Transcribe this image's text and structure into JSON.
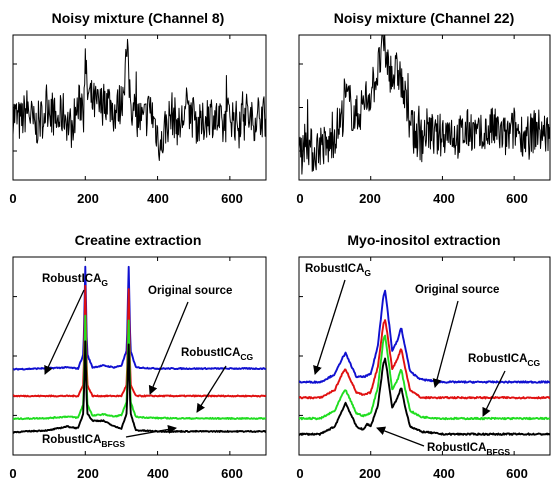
{
  "chart_data": [
    {
      "type": "line",
      "title": "Noisy mixture (Channel 8)",
      "xlim": [
        0,
        700
      ],
      "ylim": [
        -1.2,
        1.6
      ],
      "xticks": [
        "0",
        "200",
        "400",
        "600"
      ],
      "grid": false,
      "series": [
        {
          "color": "#000000",
          "x": [
            0,
            20,
            40,
            60,
            80,
            100,
            120,
            140,
            160,
            180,
            195,
            200,
            205,
            220,
            240,
            260,
            280,
            300,
            310,
            315,
            320,
            325,
            330,
            340,
            360,
            380,
            400,
            410,
            420,
            440,
            460,
            480,
            500,
            520,
            540,
            560,
            580,
            600,
            620,
            640,
            660,
            680,
            700
          ],
          "y": [
            0.1,
            -0.1,
            0.2,
            -0.2,
            0.0,
            0.3,
            -0.1,
            0.1,
            -0.2,
            0.2,
            0.4,
            1.1,
            0.5,
            0.3,
            0.2,
            0.4,
            0.1,
            0.3,
            0.9,
            1.3,
            0.8,
            0.4,
            0.2,
            0.1,
            -0.1,
            0.2,
            -0.3,
            -0.6,
            -0.2,
            0.1,
            -0.2,
            0.2,
            0.0,
            -0.2,
            0.1,
            0.0,
            -0.2,
            0.1,
            -0.1,
            0.2,
            -0.1,
            0.1,
            0.0
          ]
        }
      ]
    },
    {
      "type": "line",
      "title": "Noisy mixture (Channel 22)",
      "xlim": [
        0,
        700
      ],
      "ylim": [
        -1.2,
        1.6
      ],
      "xticks": [
        "0",
        "200",
        "400",
        "600"
      ],
      "grid": false,
      "series": [
        {
          "color": "#000000",
          "x": [
            0,
            20,
            40,
            60,
            80,
            100,
            120,
            130,
            140,
            150,
            160,
            180,
            200,
            220,
            235,
            240,
            245,
            260,
            280,
            290,
            300,
            320,
            340,
            360,
            380,
            400,
            420,
            440,
            460,
            480,
            500,
            520,
            540,
            560,
            580,
            600,
            620,
            640,
            660,
            680,
            700
          ],
          "y": [
            -0.6,
            -0.4,
            -0.7,
            -0.5,
            -0.6,
            -0.3,
            0.0,
            0.4,
            0.3,
            0.1,
            0.0,
            0.3,
            0.5,
            0.9,
            1.4,
            1.3,
            1.1,
            0.8,
            0.9,
            0.5,
            0.2,
            -0.3,
            -0.4,
            -0.2,
            -0.4,
            -0.3,
            -0.2,
            -0.4,
            -0.3,
            -0.2,
            -0.4,
            -0.3,
            -0.2,
            -0.3,
            -0.4,
            -0.2,
            -0.3,
            -0.4,
            -0.2,
            -0.3,
            -0.3
          ]
        }
      ]
    },
    {
      "type": "line",
      "title": "Creatine extraction",
      "xlim": [
        0,
        700
      ],
      "ylim": [
        -0.6,
        4.6
      ],
      "xticks": [
        "0",
        "200",
        "400",
        "600"
      ],
      "grid": false,
      "series": [
        {
          "name": "RobustICA_G",
          "color": "#1010d0",
          "offset": 1.65,
          "x": [
            0,
            100,
            150,
            180,
            195,
            200,
            205,
            220,
            250,
            280,
            300,
            315,
            320,
            325,
            340,
            400,
            500,
            600,
            700
          ],
          "y": [
            0.0,
            0.03,
            0.05,
            0.02,
            0.4,
            2.7,
            0.4,
            0.05,
            0.1,
            0.05,
            0.1,
            0.5,
            2.7,
            0.5,
            0.05,
            0.02,
            0.02,
            0.02,
            0.02
          ]
        },
        {
          "name": "Original source",
          "color": "#e01010",
          "offset": 0.95,
          "x": [
            0,
            100,
            150,
            180,
            195,
            200,
            205,
            220,
            250,
            280,
            300,
            315,
            320,
            325,
            340,
            400,
            500,
            600,
            700
          ],
          "y": [
            0.0,
            0.0,
            0.0,
            0.0,
            0.3,
            2.9,
            0.3,
            0.0,
            0.0,
            0.0,
            0.0,
            0.3,
            2.8,
            0.3,
            0.0,
            0.0,
            0.0,
            0.0,
            0.0
          ]
        },
        {
          "name": "RobustICA_CG",
          "color": "#20dd20",
          "offset": 0.35,
          "x": [
            0,
            100,
            150,
            180,
            195,
            200,
            205,
            220,
            250,
            280,
            300,
            315,
            320,
            325,
            340,
            400,
            500,
            600,
            700
          ],
          "y": [
            0.0,
            0.02,
            0.06,
            0.03,
            0.4,
            2.7,
            0.4,
            0.08,
            0.12,
            0.06,
            0.1,
            0.45,
            2.6,
            0.45,
            0.05,
            0.02,
            0.01,
            0.01,
            0.01
          ]
        },
        {
          "name": "RobustICA_BFGS",
          "color": "#000000",
          "offset": 0.0,
          "x": [
            0,
            100,
            150,
            180,
            195,
            200,
            205,
            220,
            250,
            280,
            300,
            315,
            320,
            325,
            340,
            400,
            500,
            600,
            700
          ],
          "y": [
            0.0,
            0.05,
            0.15,
            0.1,
            0.5,
            2.4,
            0.5,
            0.3,
            0.3,
            0.15,
            0.1,
            0.5,
            2.3,
            0.5,
            0.05,
            0.02,
            0.02,
            0.02,
            0.02
          ]
        }
      ]
    },
    {
      "type": "line",
      "title": "Myo-inositol extraction",
      "xlim": [
        0,
        700
      ],
      "ylim": [
        -0.4,
        3.4
      ],
      "xticks": [
        "0",
        "200",
        "400",
        "600"
      ],
      "grid": false,
      "series": [
        {
          "name": "RobustICA_G",
          "color": "#1010d0",
          "offset": 1.0,
          "x": [
            0,
            60,
            100,
            120,
            130,
            140,
            160,
            180,
            200,
            220,
            235,
            240,
            245,
            260,
            275,
            285,
            295,
            310,
            340,
            400,
            500,
            600,
            700
          ],
          "y": [
            0.0,
            0.0,
            0.15,
            0.45,
            0.55,
            0.4,
            0.1,
            0.1,
            0.15,
            0.7,
            1.65,
            1.75,
            1.5,
            0.6,
            0.8,
            1.05,
            0.7,
            0.2,
            0.05,
            0.0,
            0.0,
            0.0,
            0.0
          ]
        },
        {
          "name": "Original source",
          "color": "#e01010",
          "offset": 0.7,
          "x": [
            0,
            60,
            100,
            120,
            130,
            140,
            160,
            180,
            200,
            220,
            235,
            240,
            245,
            260,
            275,
            285,
            295,
            310,
            340,
            400,
            500,
            600,
            700
          ],
          "y": [
            0.0,
            0.0,
            0.15,
            0.45,
            0.55,
            0.4,
            0.1,
            0.05,
            0.1,
            0.6,
            1.4,
            1.5,
            1.3,
            0.55,
            0.75,
            0.95,
            0.6,
            0.15,
            0.0,
            0.0,
            0.0,
            0.0,
            0.0
          ]
        },
        {
          "name": "RobustICA_CG",
          "color": "#20dd20",
          "offset": 0.3,
          "x": [
            0,
            60,
            100,
            120,
            130,
            140,
            160,
            180,
            200,
            220,
            235,
            240,
            245,
            260,
            275,
            285,
            295,
            310,
            340,
            400,
            500,
            600,
            700
          ],
          "y": [
            0.0,
            0.0,
            0.15,
            0.45,
            0.55,
            0.4,
            0.1,
            0.05,
            0.1,
            0.6,
            1.5,
            1.6,
            1.35,
            0.55,
            0.75,
            0.95,
            0.6,
            0.15,
            0.03,
            0.0,
            0.0,
            0.0,
            0.0
          ]
        },
        {
          "name": "RobustICA_BFGS",
          "color": "#000000",
          "offset": 0.0,
          "x": [
            0,
            60,
            100,
            120,
            130,
            140,
            160,
            180,
            190,
            200,
            220,
            235,
            240,
            245,
            260,
            275,
            285,
            295,
            310,
            340,
            400,
            500,
            600,
            700
          ],
          "y": [
            0.0,
            0.0,
            0.15,
            0.45,
            0.6,
            0.45,
            0.15,
            0.08,
            0.2,
            0.15,
            0.55,
            1.35,
            1.45,
            1.25,
            0.5,
            0.7,
            0.9,
            0.55,
            0.15,
            0.05,
            0.0,
            0.0,
            0.0,
            0.0
          ]
        }
      ]
    }
  ],
  "annotations": {
    "c3": {
      "g_main": "RobustICA",
      "g_sub": "G",
      "orig": "Original source",
      "cg_main": "RobustICA",
      "cg_sub": "CG",
      "bfgs_main": "RobustICA",
      "bfgs_sub": "BFGS"
    },
    "c4": {
      "g_main": "RobustICA",
      "g_sub": "G",
      "orig": "Original source",
      "cg_main": "RobustICA",
      "cg_sub": "CG",
      "bfgs_main": "RobustICA",
      "bfgs_sub": "BFGS"
    }
  }
}
